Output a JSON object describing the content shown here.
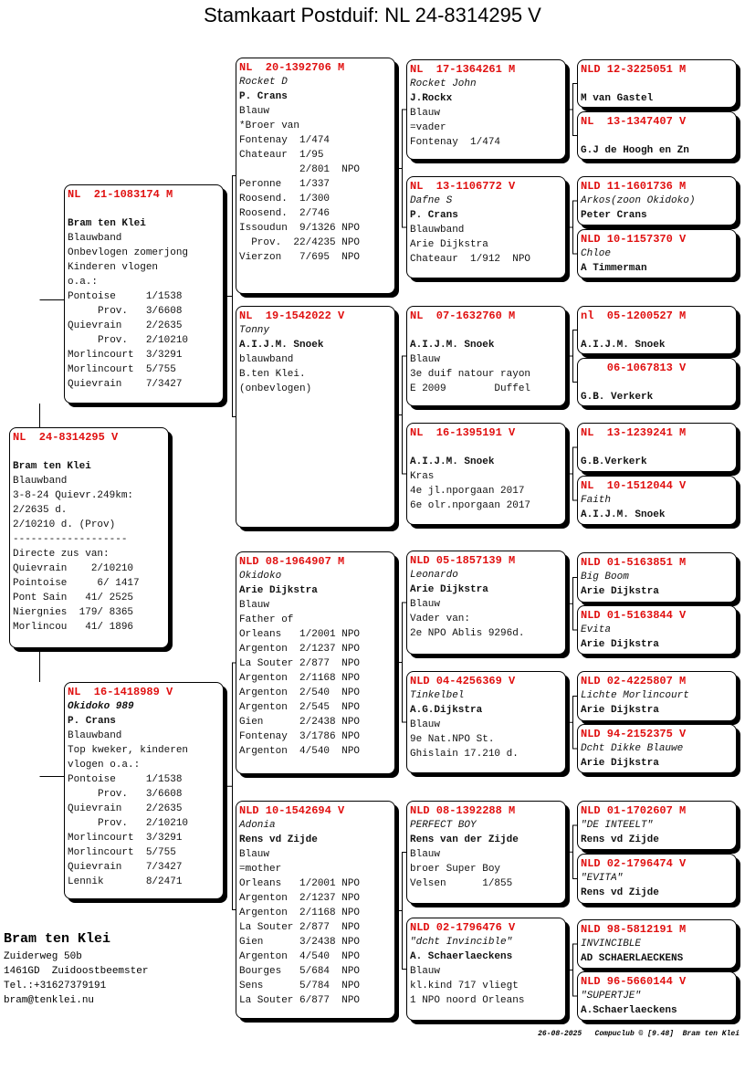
{
  "title": "Stamkaart Postduif: NL  24-8314295 V",
  "colors": {
    "ring": "#e01010",
    "text": "#111111",
    "border": "#000000"
  },
  "subject": {
    "lines": [
      [
        "NL  24-8314295 V",
        "r"
      ],
      [
        "",
        ""
      ],
      [
        "Bram ten Klei",
        "b"
      ],
      [
        "Blauwband",
        ""
      ],
      [
        "3-8-24 Quievr.249km:",
        ""
      ],
      [
        "2/2635 d.",
        ""
      ],
      [
        "2/10210 d. (Prov)",
        ""
      ],
      [
        "-------------------",
        ""
      ],
      [
        "Directe zus van:",
        ""
      ],
      [
        "Quievrain    2/10210",
        ""
      ],
      [
        "Pointoise     6/ 1417",
        ""
      ],
      [
        "Pont Sain   41/ 2525",
        ""
      ],
      [
        "Niergnies  179/ 8365",
        ""
      ],
      [
        "Morlincou   41/ 1896",
        ""
      ]
    ]
  },
  "gen1": [
    {
      "lines": [
        [
          "NL  21-1083174 M",
          "r"
        ],
        [
          "",
          ""
        ],
        [
          "Bram ten Klei",
          "b"
        ],
        [
          "Blauwband",
          ""
        ],
        [
          "Onbevlogen zomerjong",
          ""
        ],
        [
          "Kinderen vlogen",
          ""
        ],
        [
          "o.a.:",
          ""
        ],
        [
          "Pontoise     1/1538",
          ""
        ],
        [
          "     Prov.   3/6608",
          ""
        ],
        [
          "Quievrain    2/2635",
          ""
        ],
        [
          "     Prov.   2/10210",
          ""
        ],
        [
          "Morlincourt  3/3291",
          ""
        ],
        [
          "Morlincourt  5/755",
          ""
        ],
        [
          "Quievrain    7/3427",
          ""
        ]
      ]
    },
    {
      "lines": [
        [
          "NL  16-1418989 V",
          "r"
        ],
        [
          "Okidoko 989",
          "bi"
        ],
        [
          "P. Crans",
          "b"
        ],
        [
          "Blauwband",
          ""
        ],
        [
          "Top kweker, kinderen",
          ""
        ],
        [
          "vlogen o.a.:",
          ""
        ],
        [
          "Pontoise     1/1538",
          ""
        ],
        [
          "     Prov.   3/6608",
          ""
        ],
        [
          "Quievrain    2/2635",
          ""
        ],
        [
          "     Prov.   2/10210",
          ""
        ],
        [
          "Morlincourt  3/3291",
          ""
        ],
        [
          "Morlincourt  5/755",
          ""
        ],
        [
          "Quievrain    7/3427",
          ""
        ],
        [
          "Lennik       8/2471",
          ""
        ]
      ]
    }
  ],
  "gen2": [
    {
      "lines": [
        [
          "NL  20-1392706 M",
          "r"
        ],
        [
          "Rocket D",
          "i"
        ],
        [
          "P. Crans",
          "b"
        ],
        [
          "Blauw",
          ""
        ],
        [
          "*Broer van",
          ""
        ],
        [
          "Fontenay  1/474",
          ""
        ],
        [
          "Chateaur  1/95",
          ""
        ],
        [
          "          2/801  NPO",
          ""
        ],
        [
          "Peronne   1/337",
          ""
        ],
        [
          "Roosend.  1/300",
          ""
        ],
        [
          "Roosend.  2/746",
          ""
        ],
        [
          "Issoudun  9/1326 NPO",
          ""
        ],
        [
          "  Prov.  22/4235 NPO",
          ""
        ],
        [
          "Vierzon   7/695  NPO",
          ""
        ]
      ]
    },
    {
      "lines": [
        [
          "NL  19-1542022 V",
          "r"
        ],
        [
          "Tonny",
          "i"
        ],
        [
          "A.I.J.M. Snoek",
          "b"
        ],
        [
          "blauwband",
          ""
        ],
        [
          "B.ten Klei.",
          ""
        ],
        [
          "(onbevlogen)",
          ""
        ]
      ]
    },
    {
      "lines": [
        [
          "NLD 08-1964907 M",
          "r"
        ],
        [
          "Okidoko",
          "i"
        ],
        [
          "Arie Dijkstra",
          "b"
        ],
        [
          "Blauw",
          ""
        ],
        [
          "Father of",
          ""
        ],
        [
          "Orleans   1/2001 NPO",
          ""
        ],
        [
          "Argenton  2/1237 NPO",
          ""
        ],
        [
          "La Souter 2/877  NPO",
          ""
        ],
        [
          "Argenton  2/1168 NPO",
          ""
        ],
        [
          "Argenton  2/540  NPO",
          ""
        ],
        [
          "Argenton  2/545  NPO",
          ""
        ],
        [
          "Gien      2/2438 NPO",
          ""
        ],
        [
          "Fontenay  3/1786 NPO",
          ""
        ],
        [
          "Argenton  4/540  NPO",
          ""
        ]
      ]
    },
    {
      "lines": [
        [
          "NLD 10-1542694 V",
          "r"
        ],
        [
          "Adonia",
          "i"
        ],
        [
          "Rens vd Zijde",
          "b"
        ],
        [
          "Blauw",
          ""
        ],
        [
          "=mother",
          ""
        ],
        [
          "Orleans   1/2001 NPO",
          ""
        ],
        [
          "Argenton  2/1237 NPO",
          ""
        ],
        [
          "Argenton  2/1168 NPO",
          ""
        ],
        [
          "La Souter 2/877  NPO",
          ""
        ],
        [
          "Gien      3/2438 NPO",
          ""
        ],
        [
          "Argenton  4/540  NPO",
          ""
        ],
        [
          "Bourges   5/684  NPO",
          ""
        ],
        [
          "Sens      5/784  NPO",
          ""
        ],
        [
          "La Souter 6/877  NPO",
          ""
        ]
      ]
    }
  ],
  "gen3": [
    {
      "lines": [
        [
          "NL  17-1364261 M",
          "r"
        ],
        [
          "Rocket John",
          "i"
        ],
        [
          "J.Rockx",
          "b"
        ],
        [
          "Blauw",
          ""
        ],
        [
          "=vader",
          ""
        ],
        [
          "Fontenay  1/474",
          ""
        ]
      ]
    },
    {
      "lines": [
        [
          "NL  13-1106772 V",
          "r"
        ],
        [
          "Dafne S",
          "i"
        ],
        [
          "P. Crans",
          "b"
        ],
        [
          "Blauwband",
          ""
        ],
        [
          "Arie Dijkstra",
          ""
        ],
        [
          "Chateaur  1/912  NPO",
          ""
        ]
      ]
    },
    {
      "lines": [
        [
          "NL  07-1632760 M",
          "r"
        ],
        [
          "",
          ""
        ],
        [
          "A.I.J.M. Snoek",
          "b"
        ],
        [
          "Blauw",
          ""
        ],
        [
          "3e duif natour rayon",
          ""
        ],
        [
          "E 2009        Duffel",
          ""
        ]
      ]
    },
    {
      "lines": [
        [
          "NL  16-1395191 V",
          "r"
        ],
        [
          "",
          ""
        ],
        [
          "A.I.J.M. Snoek",
          "b"
        ],
        [
          "Kras",
          ""
        ],
        [
          "4e jl.nporgaan 2017",
          ""
        ],
        [
          "6e olr.nporgaan 2017",
          ""
        ]
      ]
    },
    {
      "lines": [
        [
          "NLD 05-1857139 M",
          "r"
        ],
        [
          "Leonardo",
          "i"
        ],
        [
          "Arie Dijkstra",
          "b"
        ],
        [
          "Blauw",
          ""
        ],
        [
          "Vader van:",
          ""
        ],
        [
          "2e NPO Ablis 9296d.",
          ""
        ]
      ]
    },
    {
      "lines": [
        [
          "NLD 04-4256369 V",
          "r"
        ],
        [
          "Tinkelbel",
          "i"
        ],
        [
          "A.G.Dijkstra",
          "b"
        ],
        [
          "Blauw",
          ""
        ],
        [
          "9e Nat.NPO St.",
          ""
        ],
        [
          "Ghislain 17.210 d.",
          ""
        ]
      ]
    },
    {
      "lines": [
        [
          "NLD 08-1392288 M",
          "r"
        ],
        [
          "PERFECT BOY",
          "i"
        ],
        [
          "Rens van der Zijde",
          "b"
        ],
        [
          "Blauw",
          ""
        ],
        [
          "broer Super Boy",
          ""
        ],
        [
          "Velsen      1/855",
          ""
        ]
      ]
    },
    {
      "lines": [
        [
          "NLD 02-1796476 V",
          "r"
        ],
        [
          "\"dcht Invincible\"",
          "i"
        ],
        [
          "A. Schaerlaeckens",
          "b"
        ],
        [
          "Blauw",
          ""
        ],
        [
          "kl.kind 717 vliegt",
          ""
        ],
        [
          "1 NPO noord Orleans",
          ""
        ]
      ]
    }
  ],
  "gen4": [
    {
      "lines": [
        [
          "NLD 12-3225051 M",
          "r"
        ],
        [
          "",
          ""
        ],
        [
          "M van Gastel",
          "b"
        ]
      ]
    },
    {
      "lines": [
        [
          "NL  13-1347407 V",
          "r"
        ],
        [
          "",
          ""
        ],
        [
          "G.J de Hoogh en Zn",
          "b"
        ]
      ]
    },
    {
      "lines": [
        [
          "NLD 11-1601736 M",
          "r"
        ],
        [
          "Arkos(zoon Okidoko)",
          "i"
        ],
        [
          "Peter Crans",
          "b"
        ]
      ]
    },
    {
      "lines": [
        [
          "NLD 10-1157370 V",
          "r"
        ],
        [
          "Chloe",
          "i"
        ],
        [
          "A Timmerman",
          "b"
        ]
      ]
    },
    {
      "lines": [
        [
          "nl  05-1200527 M",
          "r"
        ],
        [
          "",
          ""
        ],
        [
          "A.I.J.M. Snoek",
          "b"
        ]
      ]
    },
    {
      "lines": [
        [
          "    06-1067813 V",
          "r"
        ],
        [
          "",
          ""
        ],
        [
          "G.B. Verkerk",
          "b"
        ]
      ]
    },
    {
      "lines": [
        [
          "NL  13-1239241 M",
          "r"
        ],
        [
          "",
          ""
        ],
        [
          "G.B.Verkerk",
          "b"
        ]
      ]
    },
    {
      "lines": [
        [
          "NL  10-1512044 V",
          "r"
        ],
        [
          "Faith",
          "i"
        ],
        [
          "A.I.J.M. Snoek",
          "b"
        ]
      ]
    },
    {
      "lines": [
        [
          "NLD 01-5163851 M",
          "r"
        ],
        [
          "Big Boom",
          "i"
        ],
        [
          "Arie Dijkstra",
          "b"
        ]
      ]
    },
    {
      "lines": [
        [
          "NLD 01-5163844 V",
          "r"
        ],
        [
          "Evita",
          "i"
        ],
        [
          "Arie Dijkstra",
          "b"
        ]
      ]
    },
    {
      "lines": [
        [
          "NLD 02-4225807 M",
          "r"
        ],
        [
          "Lichte Morlincourt",
          "i"
        ],
        [
          "Arie Dijkstra",
          "b"
        ]
      ]
    },
    {
      "lines": [
        [
          "NLD 94-2152375 V",
          "r"
        ],
        [
          "Dcht Dikke Blauwe",
          "i"
        ],
        [
          "Arie Dijkstra",
          "b"
        ]
      ]
    },
    {
      "lines": [
        [
          "NLD 01-1702607 M",
          "r"
        ],
        [
          "\"DE INTEELT\"",
          "i"
        ],
        [
          "Rens vd Zijde",
          "b"
        ]
      ]
    },
    {
      "lines": [
        [
          "NLD 02-1796474 V",
          "r"
        ],
        [
          "\"EVITA\"",
          "i"
        ],
        [
          "Rens vd Zijde",
          "b"
        ]
      ]
    },
    {
      "lines": [
        [
          "NLD 98-5812191 M",
          "r"
        ],
        [
          "INVINCIBLE",
          "i"
        ],
        [
          "AD SCHAERLAECKENS",
          "b"
        ]
      ]
    },
    {
      "lines": [
        [
          "NLD 96-5660144 V",
          "r"
        ],
        [
          "\"SUPERTJE\"",
          "i"
        ],
        [
          "A.Schaerlaeckens",
          "b"
        ]
      ]
    }
  ],
  "owner": {
    "name": "Bram ten Klei",
    "address": "Zuiderweg 50b",
    "city": "1461GD  Zuidoostbeemster",
    "phone": "Tel.:+31627379191",
    "email": "bram@tenklei.nu"
  },
  "footer": {
    "date": "26-08-2025",
    "program": "Compuclub © [9.48]",
    "owner": "Bram ten Klei"
  }
}
